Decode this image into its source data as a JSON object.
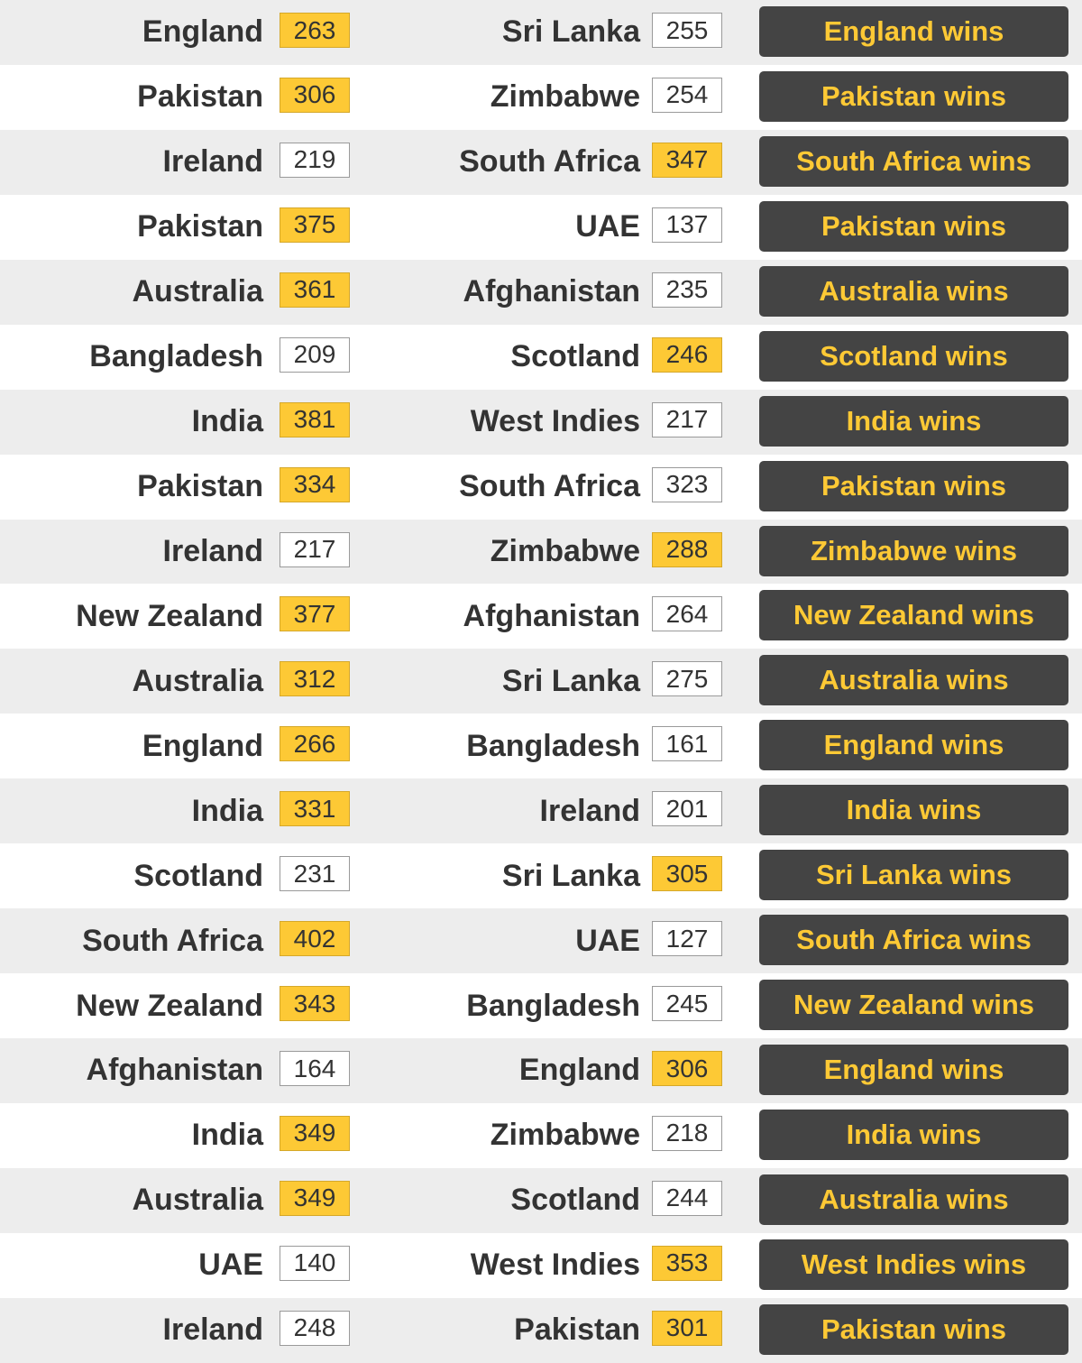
{
  "colors": {
    "winner_highlight": "#fdc935",
    "result_button_bg": "#444444",
    "result_text": "#fdc935",
    "shaded_row_bg": "#ededed",
    "team_text": "#333333"
  },
  "matches": [
    {
      "home": "England",
      "home_score": "263",
      "away": "Sri Lanka",
      "away_score": "255",
      "winner_side": "home",
      "result": "England wins"
    },
    {
      "home": "Pakistan",
      "home_score": "306",
      "away": "Zimbabwe",
      "away_score": "254",
      "winner_side": "home",
      "result": "Pakistan wins"
    },
    {
      "home": "Ireland",
      "home_score": "219",
      "away": "South Africa",
      "away_score": "347",
      "winner_side": "away",
      "result": "South Africa wins"
    },
    {
      "home": "Pakistan",
      "home_score": "375",
      "away": "UAE",
      "away_score": "137",
      "winner_side": "home",
      "result": "Pakistan wins"
    },
    {
      "home": "Australia",
      "home_score": "361",
      "away": "Afghanistan",
      "away_score": "235",
      "winner_side": "home",
      "result": "Australia wins"
    },
    {
      "home": "Bangladesh",
      "home_score": "209",
      "away": "Scotland",
      "away_score": "246",
      "winner_side": "away",
      "result": "Scotland wins"
    },
    {
      "home": "India",
      "home_score": "381",
      "away": "West Indies",
      "away_score": "217",
      "winner_side": "home",
      "result": "India wins"
    },
    {
      "home": "Pakistan",
      "home_score": "334",
      "away": "South Africa",
      "away_score": "323",
      "winner_side": "home",
      "result": "Pakistan wins"
    },
    {
      "home": "Ireland",
      "home_score": "217",
      "away": "Zimbabwe",
      "away_score": "288",
      "winner_side": "away",
      "result": "Zimbabwe wins"
    },
    {
      "home": "New Zealand",
      "home_score": "377",
      "away": "Afghanistan",
      "away_score": "264",
      "winner_side": "home",
      "result": "New Zealand wins"
    },
    {
      "home": "Australia",
      "home_score": "312",
      "away": "Sri Lanka",
      "away_score": "275",
      "winner_side": "home",
      "result": "Australia wins"
    },
    {
      "home": "England",
      "home_score": "266",
      "away": "Bangladesh",
      "away_score": "161",
      "winner_side": "home",
      "result": "England wins"
    },
    {
      "home": "India",
      "home_score": "331",
      "away": "Ireland",
      "away_score": "201",
      "winner_side": "home",
      "result": "India wins"
    },
    {
      "home": "Scotland",
      "home_score": "231",
      "away": "Sri Lanka",
      "away_score": "305",
      "winner_side": "away",
      "result": "Sri Lanka wins"
    },
    {
      "home": "South Africa",
      "home_score": "402",
      "away": "UAE",
      "away_score": "127",
      "winner_side": "home",
      "result": "South Africa wins"
    },
    {
      "home": "New Zealand",
      "home_score": "343",
      "away": "Bangladesh",
      "away_score": "245",
      "winner_side": "home",
      "result": "New Zealand wins"
    },
    {
      "home": "Afghanistan",
      "home_score": "164",
      "away": "England",
      "away_score": "306",
      "winner_side": "away",
      "result": "England wins"
    },
    {
      "home": "India",
      "home_score": "349",
      "away": "Zimbabwe",
      "away_score": "218",
      "winner_side": "home",
      "result": "India wins"
    },
    {
      "home": "Australia",
      "home_score": "349",
      "away": "Scotland",
      "away_score": "244",
      "winner_side": "home",
      "result": "Australia wins"
    },
    {
      "home": "UAE",
      "home_score": "140",
      "away": "West Indies",
      "away_score": "353",
      "winner_side": "away",
      "result": "West Indies wins"
    },
    {
      "home": "Ireland",
      "home_score": "248",
      "away": "Pakistan",
      "away_score": "301",
      "winner_side": "away",
      "result": "Pakistan wins"
    }
  ]
}
